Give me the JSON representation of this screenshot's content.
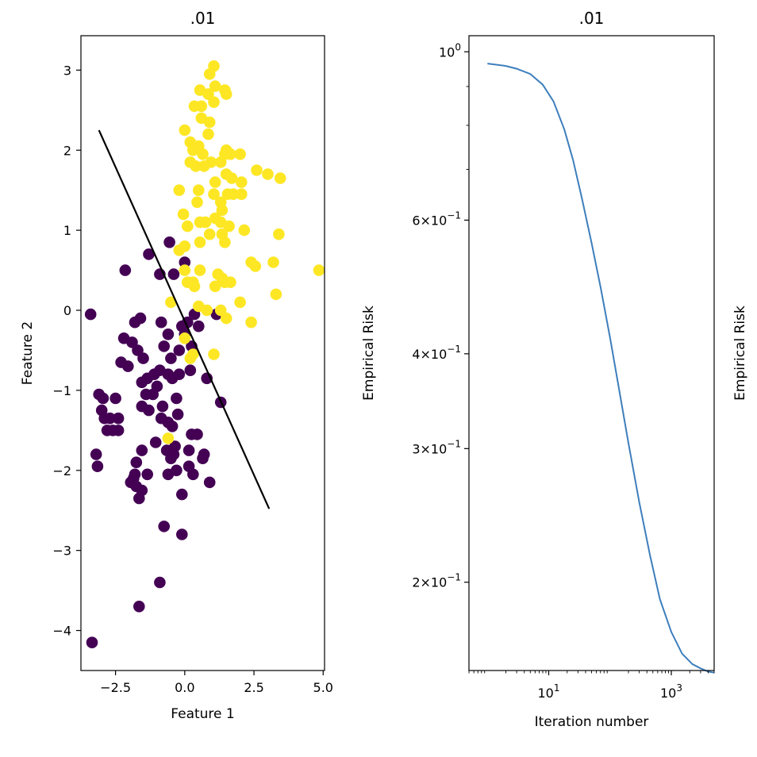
{
  "chart_data": [
    {
      "type": "scatter",
      "title": ".01",
      "xlabel": "Feature 1",
      "ylabel": "Feature 2",
      "xlim": [
        -3.75,
        5.05
      ],
      "ylim": [
        -4.5,
        3.43
      ],
      "xticks": [
        -2.5,
        0.0,
        2.5,
        5.0
      ],
      "xtick_labels": [
        "−2.5",
        "0.0",
        "2.5",
        "5.0"
      ],
      "yticks": [
        -4,
        -3,
        -2,
        -1,
        0,
        1,
        2,
        3
      ],
      "ytick_labels": [
        "−4",
        "−3",
        "−2",
        "−1",
        "0",
        "1",
        "2",
        "3"
      ],
      "grid": false,
      "colors": {
        "class0": "#440154",
        "class1": "#fde725",
        "boundary": "#000000"
      },
      "series": [
        {
          "values": [
            [
              -3.4,
              -0.05
            ],
            [
              -3.1,
              -1.05
            ],
            [
              -2.95,
              -1.1
            ],
            [
              -3.0,
              -1.25
            ],
            [
              -2.9,
              -1.35
            ],
            [
              -2.7,
              -1.35
            ],
            [
              -2.6,
              -1.5
            ],
            [
              -2.8,
              -1.5
            ],
            [
              -2.5,
              -1.1
            ],
            [
              -2.4,
              -1.35
            ],
            [
              -2.4,
              -1.5
            ],
            [
              -3.2,
              -1.8
            ],
            [
              -3.15,
              -1.95
            ],
            [
              -2.2,
              -0.35
            ],
            [
              -2.3,
              -0.65
            ],
            [
              -2.05,
              -0.7
            ],
            [
              -1.9,
              -0.4
            ],
            [
              -1.8,
              -0.15
            ],
            [
              -1.6,
              -0.1
            ],
            [
              -1.7,
              -0.5
            ],
            [
              -1.5,
              -0.6
            ],
            [
              -1.55,
              -0.9
            ],
            [
              -1.35,
              -0.85
            ],
            [
              -1.4,
              -1.05
            ],
            [
              -1.55,
              -1.2
            ],
            [
              -1.3,
              -1.25
            ],
            [
              -1.15,
              -1.05
            ],
            [
              -1.0,
              -0.95
            ],
            [
              -0.9,
              -0.75
            ],
            [
              -0.8,
              -1.2
            ],
            [
              -0.75,
              -0.45
            ],
            [
              -0.85,
              -0.15
            ],
            [
              -0.6,
              -0.3
            ],
            [
              -0.5,
              -0.6
            ],
            [
              -0.45,
              -0.85
            ],
            [
              -0.3,
              -1.1
            ],
            [
              -0.25,
              -1.3
            ],
            [
              -0.2,
              -0.5
            ],
            [
              -0.1,
              -0.2
            ],
            [
              0.0,
              -0.3
            ],
            [
              0.1,
              -0.15
            ],
            [
              0.25,
              -0.45
            ],
            [
              0.2,
              -0.75
            ],
            [
              0.35,
              -0.05
            ],
            [
              0.5,
              -0.2
            ],
            [
              0.8,
              -0.85
            ],
            [
              1.3,
              -1.15
            ],
            [
              1.15,
              -0.05
            ],
            [
              0.0,
              0.6
            ],
            [
              -0.4,
              0.45
            ],
            [
              -0.9,
              0.45
            ],
            [
              -1.3,
              0.7
            ],
            [
              -0.55,
              0.85
            ],
            [
              -2.15,
              0.5
            ],
            [
              -1.55,
              -1.75
            ],
            [
              -1.75,
              -1.9
            ],
            [
              -1.85,
              -2.1
            ],
            [
              -1.75,
              -2.2
            ],
            [
              -1.55,
              -2.25
            ],
            [
              -1.35,
              -2.05
            ],
            [
              -1.65,
              -2.35
            ],
            [
              -1.8,
              -2.05
            ],
            [
              -1.95,
              -2.15
            ],
            [
              -0.65,
              -1.75
            ],
            [
              -0.5,
              -1.85
            ],
            [
              -0.35,
              -1.7
            ],
            [
              -0.4,
              -1.8
            ],
            [
              -0.6,
              -2.05
            ],
            [
              -0.3,
              -2.0
            ],
            [
              -0.1,
              -2.3
            ],
            [
              0.15,
              -1.95
            ],
            [
              0.3,
              -2.05
            ],
            [
              0.65,
              -1.85
            ],
            [
              0.9,
              -2.15
            ],
            [
              0.7,
              -1.8
            ],
            [
              0.15,
              -1.75
            ],
            [
              0.25,
              -1.55
            ],
            [
              -1.05,
              -1.65
            ],
            [
              -0.85,
              -1.35
            ],
            [
              -0.6,
              -1.4
            ],
            [
              -0.45,
              -1.45
            ],
            [
              0.45,
              -1.55
            ],
            [
              -0.75,
              -2.7
            ],
            [
              -0.1,
              -2.8
            ],
            [
              -0.9,
              -3.4
            ],
            [
              -1.65,
              -3.7
            ],
            [
              -3.35,
              -4.15
            ],
            [
              -0.2,
              -0.8
            ],
            [
              -0.6,
              -0.8
            ],
            [
              -1.1,
              -0.8
            ]
          ]
        },
        {
          "values": [
            [
              1.05,
              3.05
            ],
            [
              0.9,
              2.95
            ],
            [
              1.1,
              2.8
            ],
            [
              0.85,
              2.7
            ],
            [
              1.05,
              2.6
            ],
            [
              0.6,
              2.55
            ],
            [
              0.35,
              2.55
            ],
            [
              0.55,
              2.75
            ],
            [
              1.45,
              2.75
            ],
            [
              1.5,
              2.7
            ],
            [
              0.6,
              2.4
            ],
            [
              0.9,
              2.35
            ],
            [
              0.0,
              2.25
            ],
            [
              0.85,
              2.2
            ],
            [
              0.2,
              2.1
            ],
            [
              0.3,
              2.0
            ],
            [
              0.5,
              2.05
            ],
            [
              0.65,
              1.95
            ],
            [
              0.2,
              1.85
            ],
            [
              0.4,
              1.8
            ],
            [
              0.7,
              1.8
            ],
            [
              0.95,
              1.85
            ],
            [
              1.3,
              1.85
            ],
            [
              1.45,
              1.95
            ],
            [
              1.5,
              2.0
            ],
            [
              1.65,
              1.95
            ],
            [
              2.0,
              1.95
            ],
            [
              2.6,
              1.75
            ],
            [
              3.0,
              1.7
            ],
            [
              3.45,
              1.65
            ],
            [
              1.5,
              1.7
            ],
            [
              1.7,
              1.65
            ],
            [
              2.05,
              1.6
            ],
            [
              1.1,
              1.6
            ],
            [
              1.05,
              1.45
            ],
            [
              1.3,
              1.35
            ],
            [
              1.35,
              1.25
            ],
            [
              1.55,
              1.45
            ],
            [
              1.75,
              1.45
            ],
            [
              2.05,
              1.45
            ],
            [
              -0.2,
              1.5
            ],
            [
              0.5,
              1.5
            ],
            [
              0.45,
              1.35
            ],
            [
              1.1,
              1.15
            ],
            [
              1.3,
              1.1
            ],
            [
              1.6,
              1.05
            ],
            [
              -0.05,
              1.2
            ],
            [
              0.1,
              1.05
            ],
            [
              0.55,
              1.1
            ],
            [
              0.75,
              1.1
            ],
            [
              0.9,
              0.95
            ],
            [
              1.35,
              0.95
            ],
            [
              1.45,
              0.85
            ],
            [
              0.55,
              0.85
            ],
            [
              0.0,
              0.8
            ],
            [
              -0.2,
              0.75
            ],
            [
              2.15,
              1.0
            ],
            [
              3.4,
              0.95
            ],
            [
              4.85,
              0.5
            ],
            [
              2.4,
              0.6
            ],
            [
              2.55,
              0.55
            ],
            [
              3.2,
              0.6
            ],
            [
              0.0,
              0.5
            ],
            [
              0.55,
              0.5
            ],
            [
              1.2,
              0.45
            ],
            [
              1.35,
              0.4
            ],
            [
              1.45,
              0.35
            ],
            [
              1.65,
              0.35
            ],
            [
              1.1,
              0.3
            ],
            [
              0.3,
              0.35
            ],
            [
              0.35,
              0.3
            ],
            [
              0.1,
              0.35
            ],
            [
              -0.5,
              0.1
            ],
            [
              0.5,
              0.05
            ],
            [
              0.8,
              0.0
            ],
            [
              1.3,
              0.0
            ],
            [
              1.5,
              -0.1
            ],
            [
              2.0,
              0.1
            ],
            [
              2.4,
              -0.15
            ],
            [
              3.3,
              0.2
            ],
            [
              0.0,
              -0.35
            ],
            [
              0.2,
              -0.6
            ],
            [
              0.3,
              -0.55
            ],
            [
              1.05,
              -0.55
            ],
            [
              -0.6,
              -1.6
            ]
          ]
        }
      ],
      "decision_boundary": [
        [
          -3.1,
          2.25
        ],
        [
          3.05,
          -2.48
        ]
      ]
    },
    {
      "type": "line",
      "title": ".01",
      "xlabel": "Iteration number",
      "ylabel": "Empirical Risk",
      "x_scale": "log",
      "y_scale": "log",
      "xlim": [
        0.5,
        5000
      ],
      "ylim": [
        0.153,
        1.05
      ],
      "xticks": [
        10,
        1000
      ],
      "xtick_labels": [
        {
          "base": "10",
          "exp": "1"
        },
        {
          "base": "10",
          "exp": "3"
        }
      ],
      "yticks": [
        1.0,
        0.6,
        0.4,
        0.3,
        0.2
      ],
      "ytick_labels": [
        {
          "mant": "",
          "base": "10",
          "exp": "0"
        },
        {
          "mant": "6×",
          "base": "10",
          "exp": "−1"
        },
        {
          "mant": "4×",
          "base": "10",
          "exp": "−1"
        },
        {
          "mant": "3×",
          "base": "10",
          "exp": "−1"
        },
        {
          "mant": "2×",
          "base": "10",
          "exp": "−1"
        }
      ],
      "grid": false,
      "color": "#3d7ebc",
      "series": [
        {
          "x": [
            1,
            2,
            3,
            5,
            8,
            12,
            18,
            25,
            35,
            50,
            70,
            100,
            140,
            200,
            300,
            450,
            650,
            1000,
            1500,
            2200,
            3000,
            4000,
            5000
          ],
          "y": [
            0.965,
            0.958,
            0.95,
            0.935,
            0.905,
            0.86,
            0.79,
            0.72,
            0.64,
            0.56,
            0.49,
            0.42,
            0.36,
            0.305,
            0.255,
            0.217,
            0.19,
            0.172,
            0.161,
            0.156,
            0.154,
            0.1525,
            0.152
          ]
        }
      ],
      "orphan_label": "Empirical Risk"
    }
  ]
}
